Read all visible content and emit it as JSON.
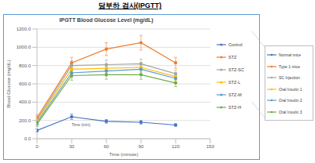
{
  "header": "당부하 검사(IPGTT)",
  "chart_data": {
    "type": "line",
    "title": "IPGTT Blood Glucose Level (mg/dL)",
    "x_label": "Time (minute)",
    "y_label": "Blood Glucose (mg/dL)",
    "x": [
      0,
      30,
      60,
      90,
      120
    ],
    "xlim": [
      0,
      150
    ],
    "xticks": [
      0,
      30,
      60,
      90,
      120,
      150
    ],
    "ylim": [
      0,
      1200
    ],
    "yticks": [
      {
        "value": 0,
        "label": "0.0"
      },
      {
        "value": 200,
        "label": "200.0"
      },
      {
        "value": 400,
        "label": "400.0"
      },
      {
        "value": 600,
        "label": "600.0"
      },
      {
        "value": 800,
        "label": "800.0"
      },
      {
        "value": 1000,
        "label": "1000.0"
      },
      {
        "value": 1200,
        "label": "1200.0"
      }
    ],
    "grid": true,
    "legend": "right",
    "marker": "circle",
    "annotations": [
      {
        "text": "Time (min)",
        "x": 38,
        "y": 150
      }
    ],
    "series": [
      {
        "name": "Control",
        "description": "Normal mice",
        "color": "#4472c4",
        "values": [
          90,
          240,
          190,
          180,
          150
        ],
        "errors": [
          15,
          30,
          20,
          20,
          15
        ]
      },
      {
        "name": "STZ",
        "description": "Type 1 mice",
        "color": "#ed7d31",
        "values": [
          230,
          830,
          980,
          1050,
          830
        ],
        "errors": [
          30,
          60,
          70,
          80,
          60
        ]
      },
      {
        "name": "STZ-SC",
        "description": "SC Injection",
        "color": "#a5a5a5",
        "values": [
          210,
          800,
          810,
          820,
          710
        ],
        "errors": [
          30,
          50,
          50,
          50,
          40
        ]
      },
      {
        "name": "STZ-L",
        "description": "Oral Insulin 1",
        "color": "#ffc000",
        "values": [
          200,
          760,
          770,
          780,
          680
        ],
        "errors": [
          25,
          50,
          50,
          50,
          40
        ]
      },
      {
        "name": "STZ-M",
        "description": "Oral Insulin 2",
        "color": "#5b9bd5",
        "values": [
          180,
          720,
          740,
          760,
          660
        ],
        "errors": [
          25,
          50,
          50,
          50,
          40
        ]
      },
      {
        "name": "STZ-H",
        "description": "Oral Insulin 3",
        "color": "#70ad47",
        "values": [
          160,
          690,
          700,
          700,
          610
        ],
        "errors": [
          25,
          50,
          50,
          50,
          40
        ]
      }
    ]
  }
}
